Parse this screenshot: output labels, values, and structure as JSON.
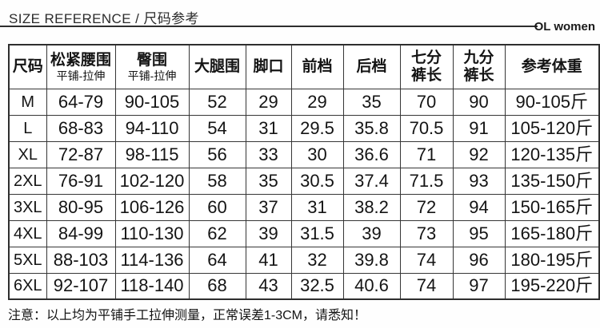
{
  "header": {
    "title": "SIZE REFERENCE / 尺码参考",
    "brand": "OL women"
  },
  "table": {
    "columns": [
      {
        "label": "尺码"
      },
      {
        "label": "松紧腰围",
        "sub": "平铺-拉伸"
      },
      {
        "label": "臀围",
        "sub": "平铺-拉伸"
      },
      {
        "label": "大腿围"
      },
      {
        "label": "脚口"
      },
      {
        "label": "前档"
      },
      {
        "label": "后档"
      },
      {
        "label": "七分裤长",
        "two_line": true
      },
      {
        "label": "九分裤长",
        "two_line": true
      },
      {
        "label": "参考体重"
      }
    ],
    "rows": [
      [
        "M",
        "64-79",
        "90-105",
        "52",
        "29",
        "29",
        "35",
        "70",
        "90",
        "90-105斤"
      ],
      [
        "L",
        "68-83",
        "94-110",
        "54",
        "31",
        "29.5",
        "35.8",
        "70.5",
        "91",
        "105-120斤"
      ],
      [
        "XL",
        "72-87",
        "98-115",
        "56",
        "33",
        "30",
        "36.6",
        "71",
        "92",
        "120-135斤"
      ],
      [
        "2XL",
        "76-91",
        "102-120",
        "58",
        "35",
        "30.5",
        "37.4",
        "71.5",
        "93",
        "135-150斤"
      ],
      [
        "3XL",
        "80-95",
        "106-126",
        "60",
        "37",
        "31",
        "38.2",
        "72",
        "94",
        "150-165斤"
      ],
      [
        "4XL",
        "84-99",
        "110-130",
        "62",
        "39",
        "31.5",
        "39",
        "73",
        "95",
        "165-180斤"
      ],
      [
        "5XL",
        "88-103",
        "114-136",
        "64",
        "41",
        "32",
        "39.8",
        "74",
        "96",
        "180-195斤"
      ],
      [
        "6XL",
        "92-107",
        "118-140",
        "68",
        "43",
        "32.5",
        "40.6",
        "74",
        "97",
        "195-220斤"
      ]
    ]
  },
  "footer": {
    "note": "注意：以上均为平铺手工拉伸测量，正常误差1-3CM，请悉知！"
  }
}
